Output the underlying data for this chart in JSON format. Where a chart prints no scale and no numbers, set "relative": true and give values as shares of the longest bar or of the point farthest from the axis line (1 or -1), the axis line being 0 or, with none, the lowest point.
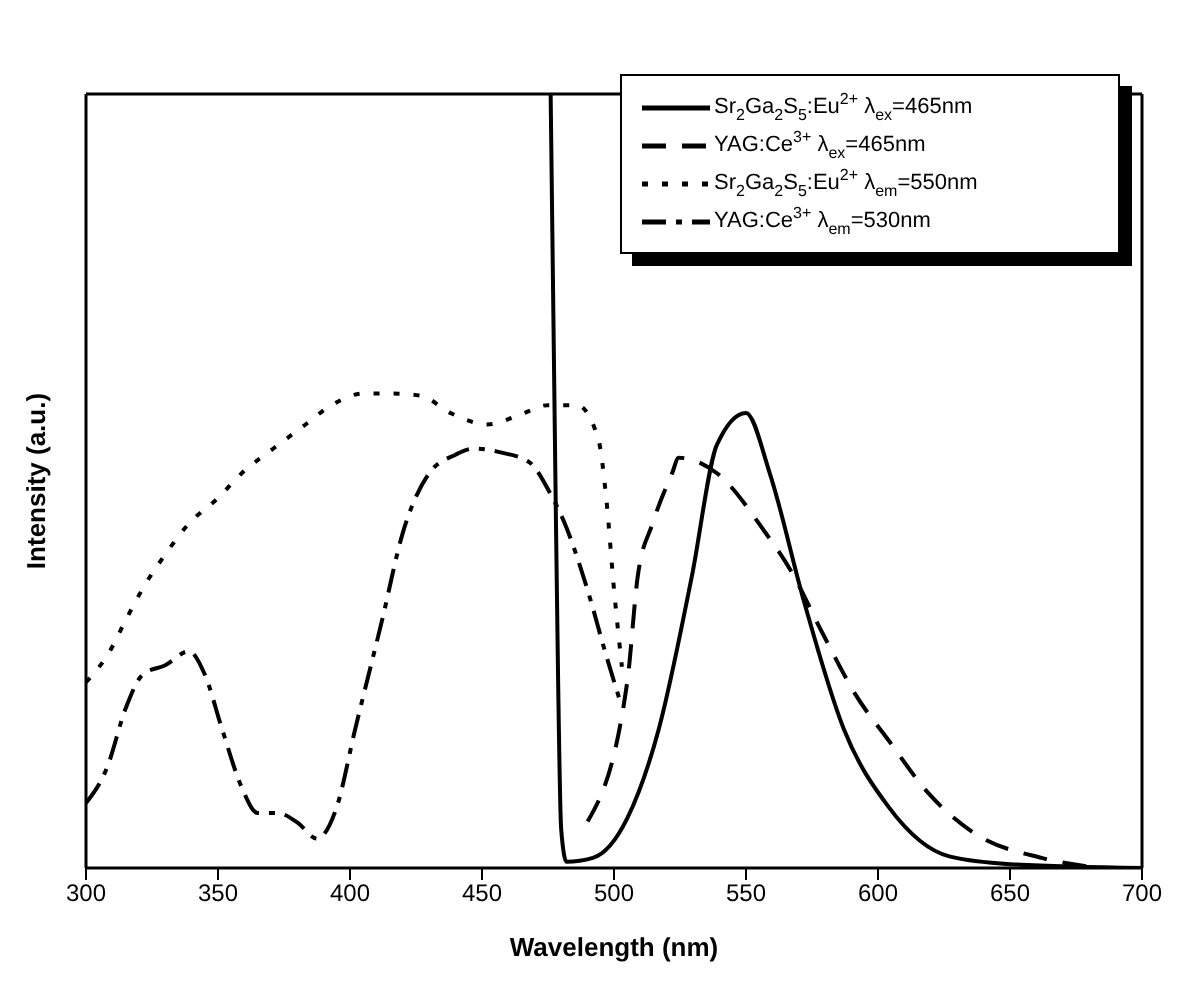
{
  "chart_data": {
    "type": "line",
    "xlabel": "Wavelength (nm)",
    "ylabel": "Intensity (a.u.)",
    "relative": true,
    "tick_labels": "x",
    "xlim": [
      300,
      700
    ],
    "xticks": [
      300,
      350,
      400,
      450,
      500,
      550,
      600,
      650,
      700
    ],
    "legend": "top right",
    "marker": "none",
    "series": [
      {
        "name": "Sr$_{2}$Ga$_{2}$S$_{5}$:Eu$^{2+}$ λ$_{ex}$=465nm",
        "color": "#000000",
        "line_style": "solid",
        "x": [
          476,
          478,
          480,
          482,
          492,
          505,
          517,
          529.5,
          539,
          550,
          559,
          572,
          587,
          604,
          627,
          650,
          700
        ],
        "values": [
          1.0,
          0.45,
          0.05,
          0.008,
          0.013,
          0.064,
          0.18,
          0.377,
          0.547,
          0.588,
          0.51,
          0.344,
          0.18,
          0.079,
          0.015,
          0.005,
          0.0
        ]
      },
      {
        "name": "YAG:Ce$^{3+}$ λ$_{ex}$=465nm",
        "color": "#000000",
        "line_style": "dashed",
        "x": [
          490,
          505,
          509,
          514.6,
          522,
          524.5,
          539,
          557,
          567,
          579.5,
          591.5,
          604,
          619,
          636,
          662,
          684
        ],
        "values": [
          0.06,
          0.24,
          0.377,
          0.445,
          0.51,
          0.53,
          0.51,
          0.435,
          0.384,
          0.3,
          0.224,
          0.165,
          0.097,
          0.046,
          0.013,
          0.0
        ]
      },
      {
        "name": "Sr$_{2}$Ga$_{2}$S$_{5}$:Eu$^{2+}$ λ$_{em}$=550nm",
        "color": "#000000",
        "line_style": "dotted",
        "x": [
          300,
          309,
          315,
          322,
          330,
          339,
          350,
          359,
          371,
          382,
          393,
          405,
          416,
          427,
          438,
          452,
          464,
          475,
          486,
          494,
          497,
          500,
          503
        ],
        "values": [
          0.24,
          0.28,
          0.32,
          0.364,
          0.405,
          0.445,
          0.478,
          0.51,
          0.542,
          0.57,
          0.598,
          0.613,
          0.613,
          0.61,
          0.588,
          0.573,
          0.585,
          0.598,
          0.598,
          0.555,
          0.48,
          0.36,
          0.26
        ]
      },
      {
        "name": "YAG:Ce$^{3+}$ λ$_{em}$=530nm",
        "color": "#000000",
        "line_style": "dashdot",
        "x": [
          300,
          308,
          315,
          321.5,
          330,
          339,
          345,
          351.5,
          359,
          365,
          372.5,
          380,
          387.5,
          395,
          402,
          412,
          420,
          430,
          440,
          447,
          457,
          468,
          476,
          481,
          490,
          497,
          502
        ],
        "values": [
          0.084,
          0.13,
          0.206,
          0.25,
          0.262,
          0.28,
          0.25,
          0.18,
          0.104,
          0.071,
          0.071,
          0.059,
          0.038,
          0.079,
          0.18,
          0.318,
          0.433,
          0.51,
          0.534,
          0.542,
          0.537,
          0.524,
          0.483,
          0.448,
          0.359,
          0.275,
          0.219
        ]
      }
    ]
  }
}
